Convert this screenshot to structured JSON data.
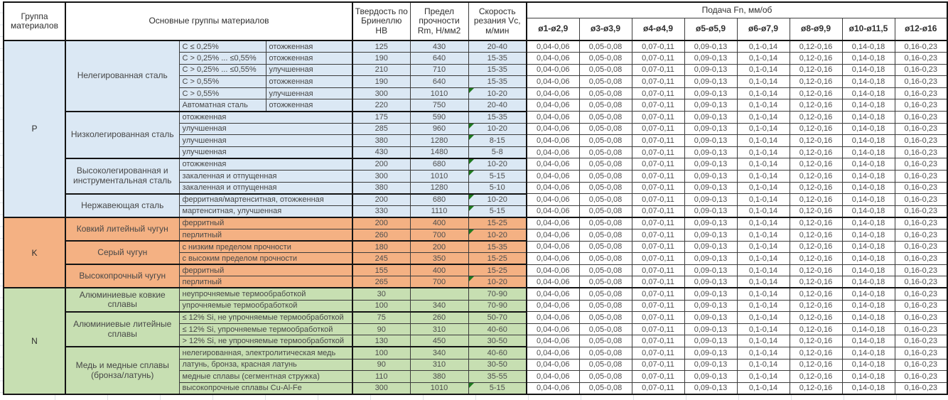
{
  "header": {
    "col_group": "Группа материалов",
    "col_materials": "Основные группы материалов",
    "col_hardness": "Твердость по Бринеллю HB",
    "col_strength": "Предел прочности Rm, Н/мм2",
    "col_speed": "Скорость резания Vc, м/мин",
    "feed_title": "Подача Fn, мм/об",
    "feed_cols": [
      "ø1-ø2,9",
      "ø3-ø3,9",
      "ø4-ø4,9",
      "ø5-ø5,9",
      "ø6-ø7,9",
      "ø8-ø9,9",
      "ø10-ø11,5",
      "ø12-ø16"
    ]
  },
  "feed_values": [
    "0,04-0,06",
    "0,05-0,08",
    "0,07-0,11",
    "0,09-0,13",
    "0,1-0,14",
    "0,12-0,16",
    "0,14-0,18",
    "0,16-0,23"
  ],
  "colors": {
    "group_P": "#dbe8f4",
    "group_K": "#f4b183",
    "group_N": "#c7dfb2",
    "note_triangle": "#1f7a1f"
  },
  "groups": [
    {
      "code": "P",
      "subgroups": [
        {
          "name": "Нелегированная сталь",
          "rows": [
            {
              "c1": "C ≤ 0,25%",
              "c2": "отожженная",
              "hb": "125",
              "rm": "430",
              "vc": "20-40"
            },
            {
              "c1": "C > 0,25% ... ≤0,55%",
              "c2": "отожженная",
              "hb": "190",
              "rm": "640",
              "vc": "15-35"
            },
            {
              "c1": "C > 0,25% ... ≤0,55%",
              "c2": "улучшенная",
              "hb": "210",
              "rm": "710",
              "vc": "15-35"
            },
            {
              "c1": "C > 0,55%",
              "c2": "отожженная",
              "hb": "190",
              "rm": "640",
              "vc": "15-35"
            },
            {
              "c1": "C > 0,55%",
              "c2": "улучшенная",
              "hb": "300",
              "rm": "1010",
              "vc": "10-20",
              "note": true
            },
            {
              "c1": "Автоматная сталь",
              "c2": "отожженная",
              "hb": "220",
              "rm": "750",
              "vc": "20-40"
            }
          ]
        },
        {
          "name": "Низколегированная сталь",
          "rows": [
            {
              "c1": "отожженная",
              "hb": "175",
              "rm": "590",
              "vc": "15-35"
            },
            {
              "c1": "улучшенная",
              "hb": "285",
              "rm": "960",
              "vc": "10-20",
              "note": true
            },
            {
              "c1": "улучшенная",
              "hb": "380",
              "rm": "1280",
              "vc": "8-15",
              "note": true
            },
            {
              "c1": "улучшенная",
              "hb": "430",
              "rm": "1480",
              "vc": "5-8"
            }
          ]
        },
        {
          "name": "Высоколегированная и инструментальная сталь",
          "rows": [
            {
              "c1": "отожженная",
              "hb": "200",
              "rm": "680",
              "vc": "10-20",
              "note": true
            },
            {
              "c1": "закаленная и отпущенная",
              "hb": "300",
              "rm": "1010",
              "vc": "5-15",
              "note": true
            },
            {
              "c1": "закаленная и отпущенная",
              "hb": "380",
              "rm": "1280",
              "vc": "5-10"
            }
          ]
        },
        {
          "name": "Нержавеющая сталь",
          "rows": [
            {
              "c1": "ферритная/мартенситная, отожженная",
              "hb": "200",
              "rm": "680",
              "vc": "10-20",
              "note": true
            },
            {
              "c1": "мартенситная, улучшенная",
              "hb": "330",
              "rm": "1110",
              "vc": "5-15",
              "note": true
            }
          ]
        }
      ]
    },
    {
      "code": "K",
      "subgroups": [
        {
          "name": "Ковкий литейный чугун",
          "rows": [
            {
              "c1": "ферритный",
              "hb": "200",
              "rm": "400",
              "vc": "15-25"
            },
            {
              "c1": "перлитный",
              "hb": "260",
              "rm": "700",
              "vc": "10-20",
              "note": true
            }
          ]
        },
        {
          "name": "Серый чугун",
          "rows": [
            {
              "c1": "с низким пределом прочности",
              "hb": "180",
              "rm": "200",
              "vc": "15-35"
            },
            {
              "c1": "с высоким пределом прочности",
              "hb": "245",
              "rm": "350",
              "vc": "15-25"
            }
          ]
        },
        {
          "name": "Высокопрочный чугун",
          "rows": [
            {
              "c1": "ферритный",
              "hb": "155",
              "rm": "400",
              "vc": "15-25"
            },
            {
              "c1": "перлитный",
              "hb": "265",
              "rm": "700",
              "vc": "10-20",
              "note": true
            }
          ]
        }
      ]
    },
    {
      "code": "N",
      "subgroups": [
        {
          "name": "Алюминиевые ковкие сплавы",
          "rows": [
            {
              "c1": "неупрочняемые термообработкой",
              "hb": "30",
              "rm": "",
              "vc": "70-90"
            },
            {
              "c1": "упрочняемые термообработкой",
              "hb": "100",
              "rm": "340",
              "vc": "70-90"
            }
          ]
        },
        {
          "name": "Алюминиевые литейные сплавы",
          "rows": [
            {
              "c1": "≤ 12% Si, не упрочняемые термообработкой",
              "hb": "75",
              "rm": "260",
              "vc": "50-70"
            },
            {
              "c1": "≤ 12% Si, упрочняемые термообработкой",
              "hb": "90",
              "rm": "310",
              "vc": "40-60"
            },
            {
              "c1": "> 12% Si, не упрочняемые термообработкой",
              "hb": "130",
              "rm": "450",
              "vc": "30-50"
            }
          ]
        },
        {
          "name": "Медь и медные сплавы (бронза/латунь)",
          "rows": [
            {
              "c1": "нелегированная, электролитическая медь",
              "hb": "100",
              "rm": "340",
              "vc": "40-60"
            },
            {
              "c1": "латунь, бронза, красная латунь",
              "hb": "90",
              "rm": "310",
              "vc": "30-50"
            },
            {
              "c1": "медные сплавы (сегментная стружка)",
              "hb": "110",
              "rm": "380",
              "vc": "35-55"
            },
            {
              "c1": "высокопрочные сплавы Cu-Al-Fe",
              "hb": "300",
              "rm": "1010",
              "vc": "5-15",
              "note": true
            }
          ]
        }
      ]
    }
  ]
}
